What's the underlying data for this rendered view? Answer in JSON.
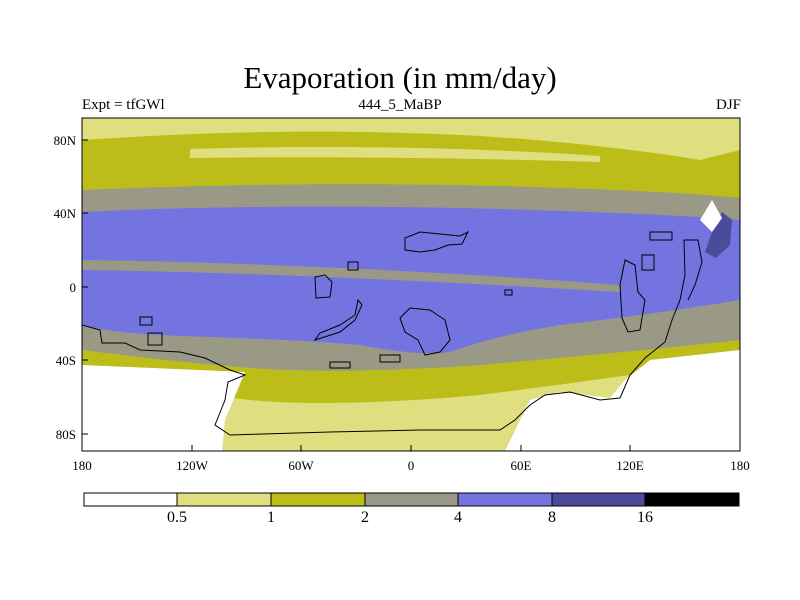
{
  "title": "Evaporation (in mm/day)",
  "subtitle_left": "Expt = tfGWl",
  "subtitle_center": "444_5_MaBP",
  "subtitle_right": "DJF",
  "lat_labels": [
    "80N",
    "40N",
    "0",
    "40S",
    "80S"
  ],
  "lon_labels": [
    "180",
    "120W",
    "60W",
    "0",
    "60E",
    "120E",
    "180"
  ],
  "colorbar": {
    "colors": [
      "#ffffff",
      "#dfdf80",
      "#bdbd1a",
      "#999985",
      "#7474e0",
      "#4b4b99",
      "#000000"
    ],
    "labels": [
      "0.5",
      "1",
      "2",
      "4",
      "8",
      "16"
    ]
  },
  "colors": {
    "light": "#dfdf80",
    "olive": "#bdbd1a",
    "gray": "#999985",
    "blue": "#7474e0",
    "darkblue": "#4b4b99",
    "white": "#ffffff"
  }
}
